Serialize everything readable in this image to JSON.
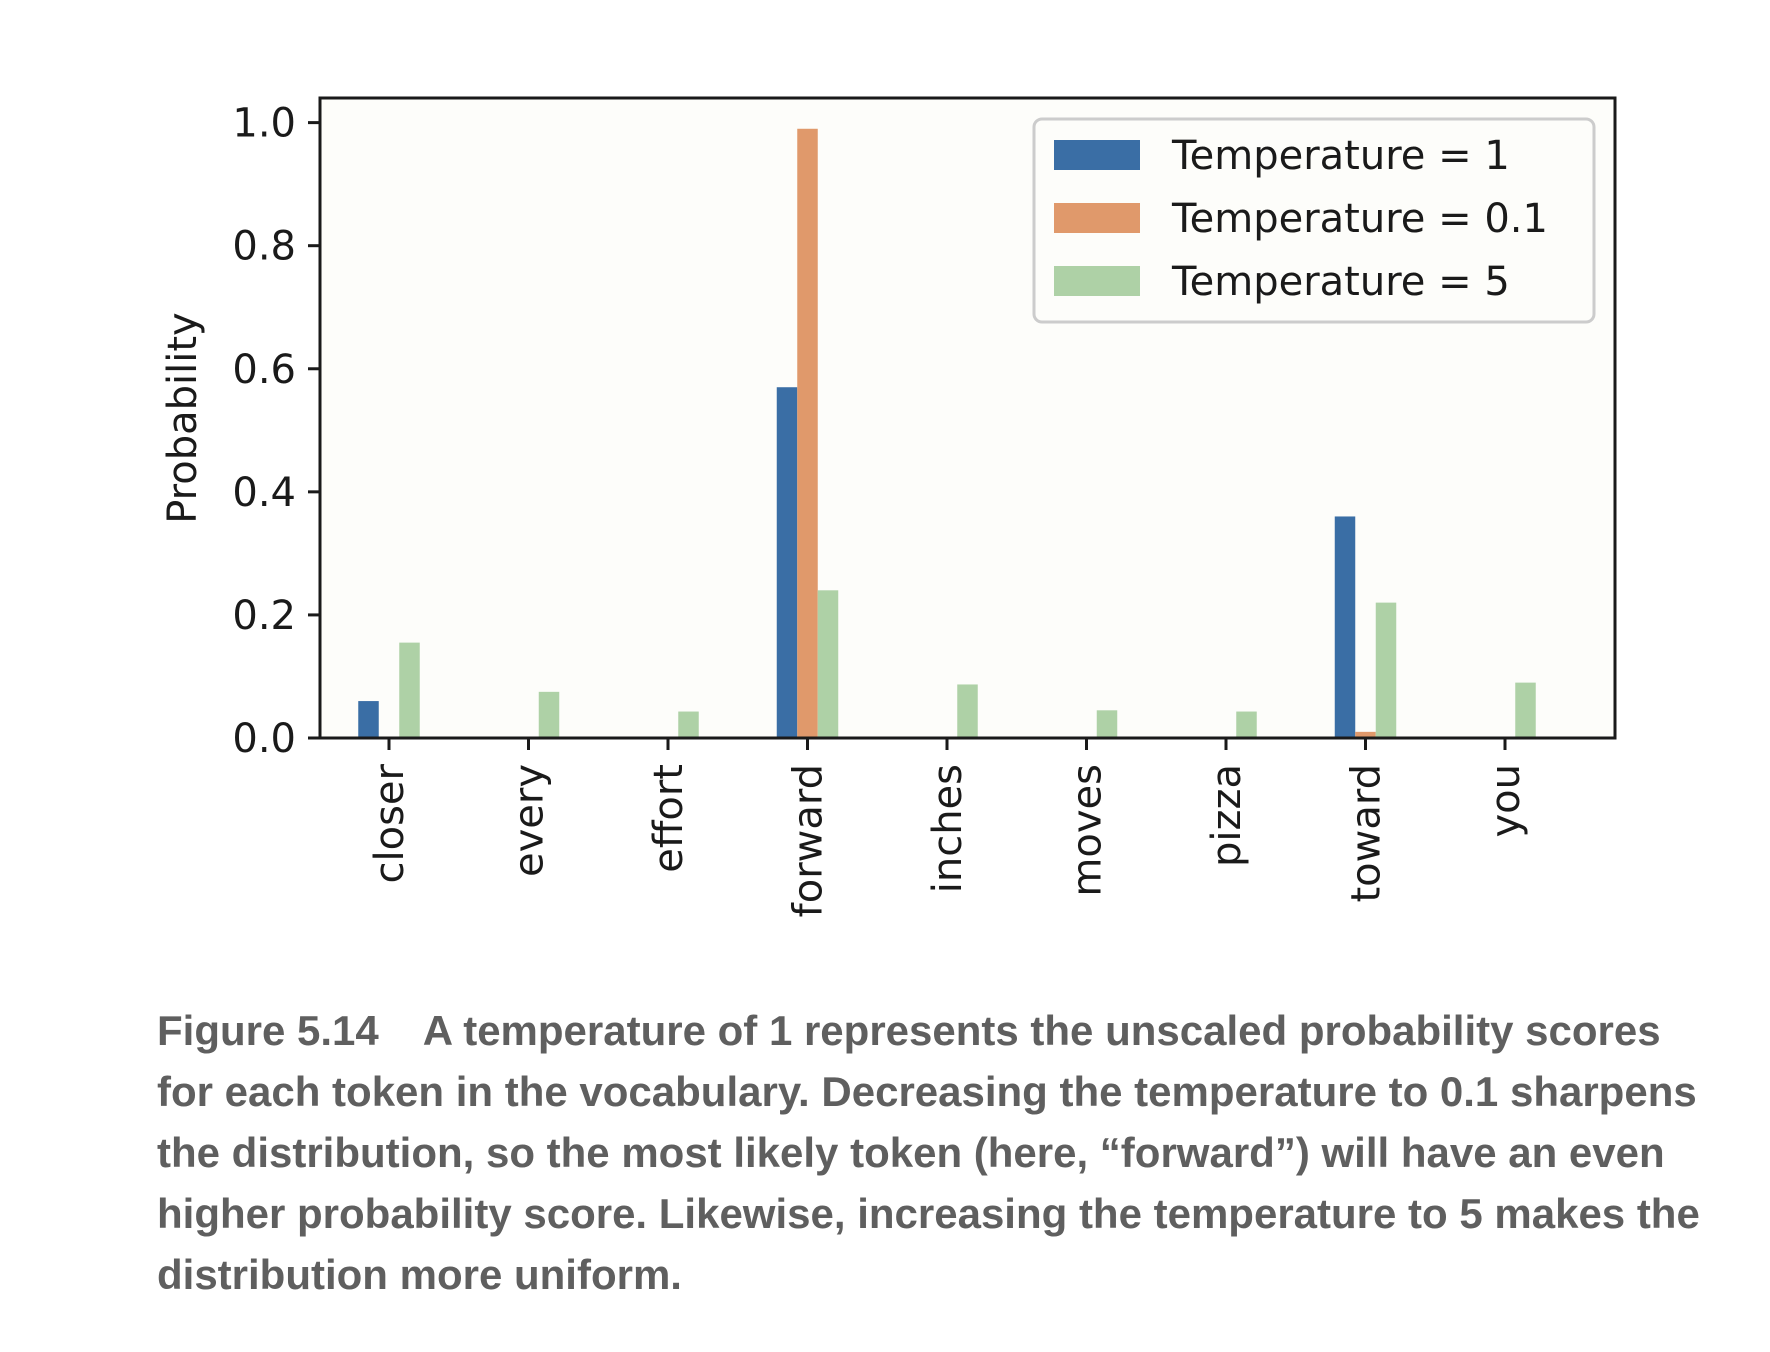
{
  "chart_data": {
    "type": "bar",
    "categories": [
      "closer",
      "every",
      "effort",
      "forward",
      "inches",
      "moves",
      "pizza",
      "toward",
      "you"
    ],
    "series": [
      {
        "name": "Temperature = 1",
        "color": "#3a6ea5",
        "values": [
          0.06,
          0.0,
          0.0,
          0.57,
          0.0,
          0.0,
          0.0,
          0.36,
          0.0
        ]
      },
      {
        "name": "Temperature = 0.1",
        "color": "#e0996b",
        "values": [
          0.0,
          0.0,
          0.0,
          0.99,
          0.0,
          0.0,
          0.0,
          0.01,
          0.0
        ]
      },
      {
        "name": "Temperature = 5",
        "color": "#aed1a6",
        "values": [
          0.155,
          0.075,
          0.043,
          0.24,
          0.087,
          0.045,
          0.043,
          0.22,
          0.09
        ]
      }
    ],
    "ylabel": "Probability",
    "xlabel": "",
    "ylim": [
      0,
      1.04
    ],
    "yticks": [
      "0.0",
      "0.2",
      "0.4",
      "0.6",
      "0.8",
      "1.0"
    ],
    "grid": false,
    "legend_position": "top-right",
    "plot_background": "#fdfdfa"
  },
  "caption": {
    "label": "Figure 5.14",
    "text": "A temperature of 1 represents the unscaled probability scores for each token in the vocabulary. Decreasing the temperature to 0.1 sharpens the distribution, so the most likely token (here, “forward”) will have an even higher probability score. Likewise, increasing the temperature to 5 makes the distribution more uniform."
  }
}
